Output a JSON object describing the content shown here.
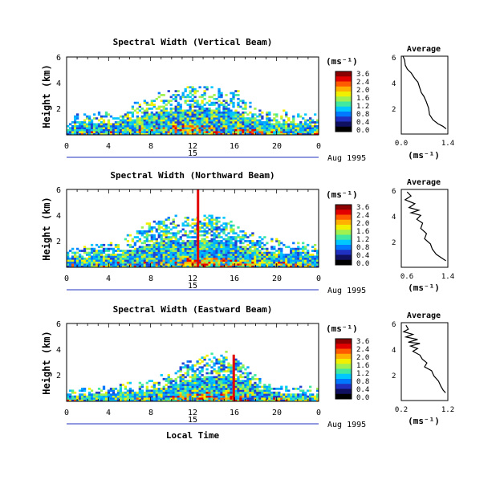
{
  "figure": {
    "xlabel_bottom": "Local Time",
    "colorbar_unit": "(ms⁻¹)",
    "colorbar_ticks": [
      "3.6",
      "2.4",
      "2.0",
      "1.6",
      "1.2",
      "0.8",
      "0.4",
      "0.0"
    ],
    "colorbar_colors": [
      "#8b0000",
      "#e30000",
      "#ff5a00",
      "#ffb000",
      "#f0f000",
      "#a0f050",
      "#40e8a0",
      "#00c8ff",
      "#0078ff",
      "#2030c0",
      "#101060",
      "#000000"
    ],
    "average_title": "Average",
    "average_xlabel": "(ms⁻¹)",
    "x_ticks": [
      "0",
      "4",
      "8",
      "12",
      "16",
      "20",
      "0"
    ],
    "date_axis_mid": "15",
    "date_axis_right": "Aug 1995",
    "ylabel": "Height (km)",
    "y_ticks": [
      "6",
      "4",
      "2"
    ]
  },
  "chart_data": [
    {
      "type": "heatmap",
      "title": "Spectral Width (Vertical Beam)",
      "xlabel": "Local Time",
      "ylabel": "Height (km)",
      "x_range_hours": [
        0,
        24
      ],
      "y_range_km": [
        0,
        6
      ],
      "cloud_top_km": [
        0.9,
        1.5,
        1.6,
        1.6,
        1.7,
        1.8,
        2.0,
        2.6,
        3.0,
        3.2,
        3.4,
        3.5,
        3.6,
        3.8,
        3.5,
        3.2,
        3.4,
        2.4,
        2.0,
        1.8,
        1.7,
        1.6,
        1.5,
        1.4,
        1.3
      ],
      "spike": null
    },
    {
      "type": "line",
      "title": "Average",
      "xlabel": "(ms⁻¹)",
      "xlim": [
        0,
        1.4
      ],
      "x_ticks": [
        "0.0",
        "1.4"
      ],
      "ylim": [
        0,
        6
      ],
      "y_ticks": [
        "6",
        "4",
        "2"
      ],
      "points": [
        [
          0.05,
          6.0
        ],
        [
          0.1,
          5.7
        ],
        [
          0.12,
          5.3
        ],
        [
          0.18,
          5.0
        ],
        [
          0.3,
          4.7
        ],
        [
          0.4,
          4.3
        ],
        [
          0.5,
          4.0
        ],
        [
          0.55,
          3.6
        ],
        [
          0.6,
          3.2
        ],
        [
          0.68,
          2.9
        ],
        [
          0.75,
          2.5
        ],
        [
          0.82,
          2.0
        ],
        [
          0.85,
          1.5
        ],
        [
          0.95,
          1.1
        ],
        [
          1.1,
          0.8
        ],
        [
          1.25,
          0.6
        ],
        [
          1.35,
          0.4
        ]
      ]
    },
    {
      "type": "heatmap",
      "title": "Spectral Width (Northward Beam)",
      "xlabel": "Local Time",
      "ylabel": "Height (km)",
      "x_range_hours": [
        0,
        24
      ],
      "y_range_km": [
        0,
        6
      ],
      "cloud_top_km": [
        1.3,
        1.4,
        1.5,
        1.6,
        1.8,
        2.0,
        2.4,
        3.0,
        3.4,
        3.6,
        3.8,
        3.6,
        3.8,
        3.9,
        4.0,
        3.6,
        3.2,
        2.8,
        2.4,
        2.2,
        2.0,
        1.8,
        1.7,
        1.6,
        1.5
      ],
      "spike": {
        "hour": 12.4,
        "top_km": 6.0
      }
    },
    {
      "type": "line",
      "title": "Average",
      "xlabel": "(ms⁻¹)",
      "xlim": [
        0.2,
        1.4
      ],
      "x_ticks": [
        "0.6",
        "1.4"
      ],
      "ylim": [
        0,
        6
      ],
      "y_ticks": [
        "6",
        "4",
        "2"
      ],
      "points": [
        [
          0.35,
          5.8
        ],
        [
          0.45,
          5.5
        ],
        [
          0.3,
          5.2
        ],
        [
          0.55,
          4.9
        ],
        [
          0.4,
          4.6
        ],
        [
          0.65,
          4.4
        ],
        [
          0.45,
          4.2
        ],
        [
          0.7,
          4.0
        ],
        [
          0.6,
          3.7
        ],
        [
          0.75,
          3.4
        ],
        [
          0.7,
          3.0
        ],
        [
          0.85,
          2.6
        ],
        [
          0.8,
          2.2
        ],
        [
          0.95,
          1.8
        ],
        [
          1.0,
          1.4
        ],
        [
          1.1,
          1.0
        ],
        [
          1.25,
          0.7
        ],
        [
          1.35,
          0.5
        ]
      ]
    },
    {
      "type": "heatmap",
      "title": "Spectral Width (Eastward Beam)",
      "xlabel": "Local Time",
      "ylabel": "Height (km)",
      "x_range_hours": [
        0,
        24
      ],
      "y_range_km": [
        0,
        6
      ],
      "cloud_top_km": [
        0.7,
        0.8,
        0.9,
        1.0,
        1.0,
        1.1,
        1.2,
        1.4,
        1.6,
        1.9,
        2.2,
        2.8,
        3.2,
        3.4,
        3.5,
        3.6,
        3.3,
        2.6,
        1.8,
        1.4,
        1.2,
        1.1,
        1.0,
        0.9,
        0.8
      ],
      "spike": {
        "hour": 15.8,
        "top_km": 3.6
      }
    },
    {
      "type": "line",
      "title": "Average",
      "xlabel": "(ms⁻¹)",
      "xlim": [
        0.2,
        1.2
      ],
      "x_ticks": [
        "0.2",
        "1.2"
      ],
      "ylim": [
        0,
        6
      ],
      "y_ticks": [
        "6",
        "4",
        "2"
      ],
      "points": [
        [
          0.3,
          5.8
        ],
        [
          0.35,
          5.5
        ],
        [
          0.25,
          5.3
        ],
        [
          0.45,
          5.1
        ],
        [
          0.3,
          4.9
        ],
        [
          0.55,
          4.7
        ],
        [
          0.35,
          4.5
        ],
        [
          0.6,
          4.4
        ],
        [
          0.4,
          4.2
        ],
        [
          0.55,
          4.0
        ],
        [
          0.45,
          3.8
        ],
        [
          0.6,
          3.5
        ],
        [
          0.65,
          3.2
        ],
        [
          0.75,
          2.9
        ],
        [
          0.7,
          2.6
        ],
        [
          0.85,
          2.3
        ],
        [
          0.9,
          1.9
        ],
        [
          1.0,
          1.5
        ],
        [
          1.05,
          1.1
        ],
        [
          1.1,
          0.8
        ],
        [
          1.15,
          0.6
        ]
      ]
    }
  ]
}
